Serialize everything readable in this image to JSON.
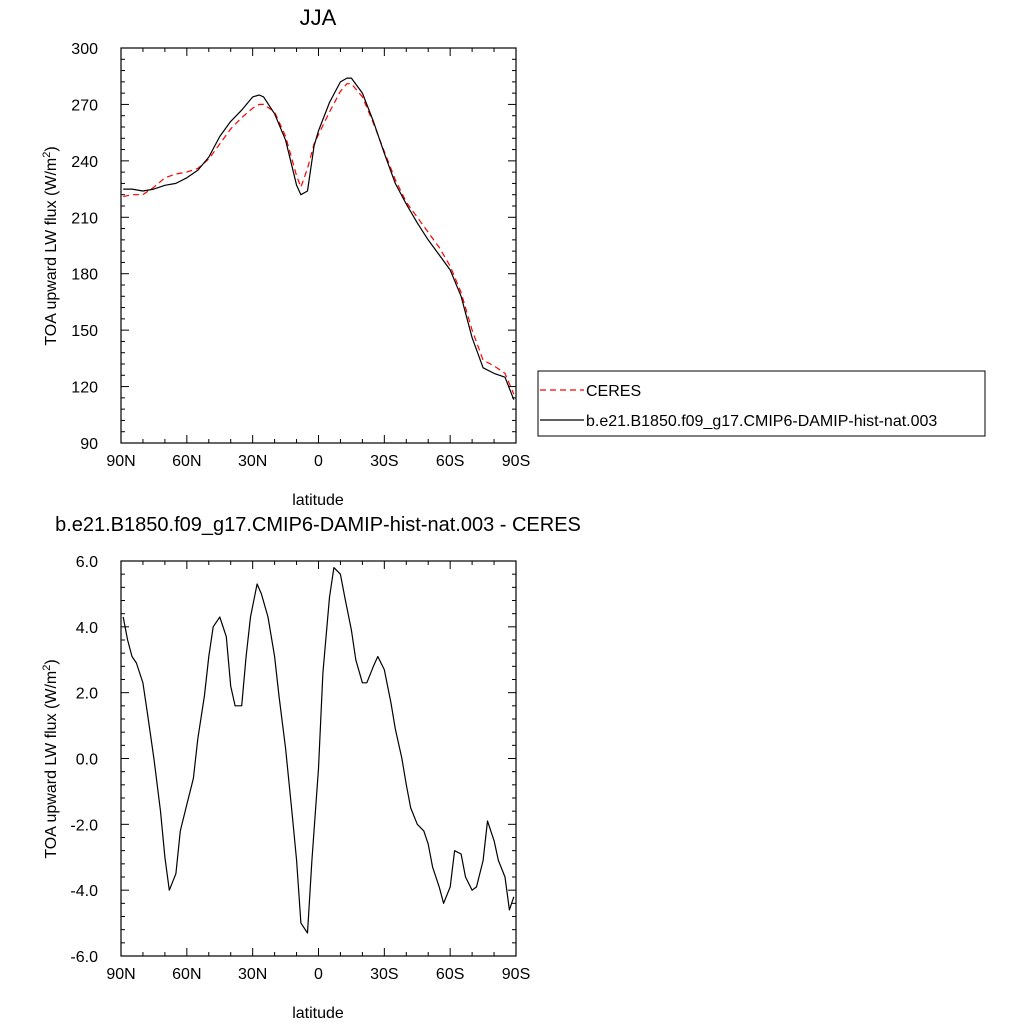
{
  "chart_data": [
    {
      "type": "line",
      "title": "JJA",
      "xlabel": "latitude",
      "ylabel": "TOA upward LW flux (W/m",
      "ylabel_sup": "2",
      "ylabel_end": ")",
      "x_ticks": [
        "90N",
        "60N",
        "30N",
        "0",
        "30S",
        "60S",
        "90S"
      ],
      "xlim": [
        90,
        -90
      ],
      "ylim": [
        90,
        300
      ],
      "y_ticks": [
        "90",
        "120",
        "150",
        "180",
        "210",
        "240",
        "270",
        "300"
      ],
      "legend_position": "right",
      "series": [
        {
          "name": "CERES",
          "color": "#ff0000",
          "style": "dashed",
          "x": [
            89,
            85,
            80,
            75,
            70,
            65,
            60,
            55,
            50,
            45,
            40,
            35,
            30,
            27,
            25,
            20,
            15,
            10,
            8,
            5,
            2,
            0,
            -5,
            -10,
            -13,
            -15,
            -20,
            -25,
            -30,
            -35,
            -40,
            -45,
            -50,
            -55,
            -60,
            -65,
            -70,
            -75,
            -80,
            -85,
            -89
          ],
          "values": [
            221,
            222,
            222,
            226,
            231,
            233,
            234,
            236,
            241,
            249,
            257,
            263,
            268,
            270,
            270,
            266,
            253,
            232,
            226,
            236,
            249,
            254,
            266,
            277,
            281,
            281,
            274,
            260,
            245,
            230,
            218,
            210,
            202,
            194,
            184,
            170,
            150,
            134,
            131,
            127,
            116
          ]
        },
        {
          "name": "b.e21.B1850.f09_g17.CMIP6-DAMIP-hist-nat.003",
          "color": "#000000",
          "style": "solid",
          "x": [
            89,
            85,
            80,
            75,
            70,
            65,
            60,
            55,
            50,
            45,
            40,
            35,
            30,
            27,
            25,
            20,
            15,
            10,
            8,
            5,
            2,
            0,
            -5,
            -10,
            -13,
            -15,
            -20,
            -25,
            -30,
            -35,
            -40,
            -45,
            -50,
            -55,
            -60,
            -65,
            -70,
            -75,
            -80,
            -85,
            -89
          ],
          "values": [
            225,
            225,
            224,
            225,
            227,
            228,
            231,
            235,
            242,
            253,
            261,
            267,
            274,
            275,
            274,
            265,
            251,
            227,
            222,
            224,
            248,
            256,
            271,
            282,
            284,
            284,
            276,
            261,
            244,
            228,
            217,
            207,
            198,
            190,
            182,
            168,
            146,
            130,
            127,
            125,
            113
          ]
        }
      ]
    },
    {
      "type": "line",
      "title": "b.e21.B1850.f09_g17.CMIP6-DAMIP-hist-nat.003 - CERES",
      "xlabel": "latitude",
      "ylabel": "TOA upward LW flux (W/m",
      "ylabel_sup": "2",
      "ylabel_end": ")",
      "x_ticks": [
        "90N",
        "60N",
        "30N",
        "0",
        "30S",
        "60S",
        "90S"
      ],
      "xlim": [
        90,
        -90
      ],
      "ylim": [
        -6.0,
        6.0
      ],
      "y_ticks": [
        "-6.0",
        "-4.0",
        "-2.0",
        "0.0",
        "2.0",
        "4.0",
        "6.0"
      ],
      "series": [
        {
          "color": "#000000",
          "style": "solid",
          "x": [
            89,
            87,
            85,
            83,
            80,
            78,
            75,
            72,
            70,
            68,
            65,
            63,
            60,
            57,
            55,
            52,
            50,
            48,
            45,
            42,
            40,
            38,
            35,
            33,
            31,
            28,
            26,
            23,
            20,
            18,
            15,
            12,
            10,
            8,
            5,
            3,
            0,
            -2,
            -5,
            -7,
            -10,
            -12,
            -15,
            -17,
            -20,
            -22,
            -25,
            -27,
            -30,
            -33,
            -35,
            -38,
            -40,
            -42,
            -45,
            -48,
            -50,
            -52,
            -55,
            -57,
            -60,
            -62,
            -65,
            -67,
            -70,
            -72,
            -75,
            -77,
            -80,
            -82,
            -85,
            -87,
            -89
          ],
          "values": [
            4.3,
            3.6,
            3.1,
            2.9,
            2.3,
            1.4,
            0.0,
            -1.6,
            -3.0,
            -4.0,
            -3.5,
            -2.2,
            -1.4,
            -0.6,
            0.6,
            1.9,
            3.1,
            4.0,
            4.3,
            3.7,
            2.2,
            1.6,
            1.6,
            3.1,
            4.3,
            5.3,
            5.0,
            4.3,
            3.1,
            1.9,
            0.3,
            -1.7,
            -3.1,
            -5.0,
            -5.3,
            -3.1,
            -0.3,
            2.6,
            4.9,
            5.8,
            5.6,
            4.9,
            3.9,
            3.0,
            2.3,
            2.3,
            2.8,
            3.1,
            2.7,
            1.7,
            0.9,
            0.0,
            -0.8,
            -1.5,
            -2.0,
            -2.2,
            -2.6,
            -3.3,
            -3.9,
            -4.4,
            -3.9,
            -2.8,
            -2.9,
            -3.6,
            -4.0,
            -3.9,
            -3.1,
            -1.9,
            -2.5,
            -3.1,
            -3.6,
            -4.6,
            -4.2
          ]
        }
      ]
    }
  ]
}
